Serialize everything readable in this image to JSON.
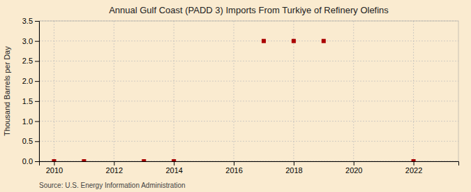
{
  "chart_data": {
    "type": "scatter",
    "title": "Annual Gulf Coast (PADD 3) Imports From Turkiye of Refinery Olefins",
    "ylabel": "Thousand Barrels per Day",
    "annotations": [
      "Source: U.S. Energy Information Administration"
    ],
    "x": [
      2010,
      2011,
      2013,
      2014,
      2017,
      2018,
      2019,
      2022
    ],
    "values": [
      0.0,
      0.0,
      0.0,
      0.0,
      3.0,
      3.0,
      3.0,
      0.0
    ],
    "color": "#aa0000",
    "marker": "square",
    "xlim": [
      2009.5,
      2023.5
    ],
    "ylim": [
      0,
      3.5
    ],
    "xticks": [
      2010,
      2012,
      2014,
      2016,
      2018,
      2020,
      2022
    ],
    "yticks": [
      {
        "value": 0.0,
        "label": "0.0"
      },
      0.5,
      {
        "value": 1.0,
        "label": "1.0"
      },
      1.5,
      {
        "value": 2.0,
        "label": "2.0"
      },
      2.5,
      {
        "value": 3.0,
        "label": "3.0"
      },
      3.5
    ],
    "grid": true
  }
}
